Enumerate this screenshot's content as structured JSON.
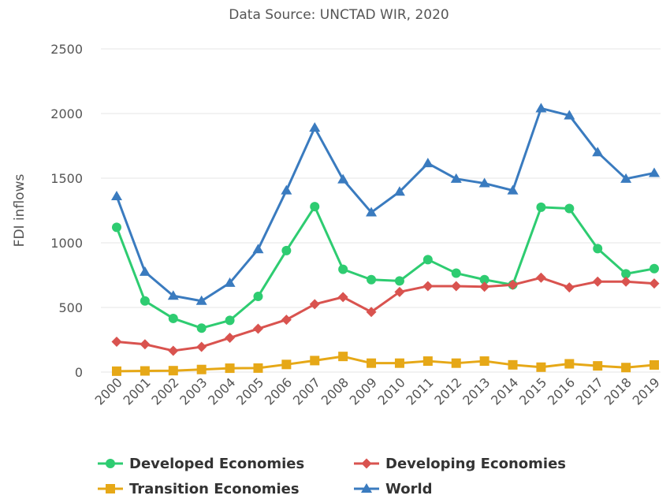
{
  "chart_data": {
    "type": "line",
    "subtitle": "Data Source: UNCTAD WIR, 2020",
    "ylabel": "FDI inflows",
    "xlabel": "",
    "ylim": [
      0,
      2500
    ],
    "yticks": [
      0,
      500,
      1000,
      1500,
      2000,
      2500
    ],
    "grid": "horizontal",
    "legend_position": "bottom",
    "x": [
      "2000",
      "2001",
      "2002",
      "2003",
      "2004",
      "2005",
      "2006",
      "2007",
      "2008",
      "2009",
      "2010",
      "2011",
      "2012",
      "2013",
      "2014",
      "2015",
      "2016",
      "2017",
      "2018",
      "2019"
    ],
    "series": [
      {
        "name": "Developed Economies",
        "color": "#2ecc71",
        "marker": "circle",
        "values": [
          1120,
          550,
          415,
          340,
          400,
          585,
          940,
          1280,
          795,
          715,
          705,
          870,
          765,
          715,
          675,
          1275,
          1265,
          955,
          760,
          800
        ]
      },
      {
        "name": "Developing Economies",
        "color": "#d9534f",
        "marker": "diamond",
        "values": [
          235,
          215,
          165,
          195,
          265,
          335,
          405,
          525,
          580,
          465,
          620,
          665,
          665,
          660,
          675,
          730,
          655,
          700,
          700,
          685
        ]
      },
      {
        "name": "Transition Economies",
        "color": "#e6a817",
        "marker": "square",
        "values": [
          7,
          9,
          11,
          20,
          30,
          31,
          59,
          89,
          121,
          69,
          69,
          85,
          69,
          85,
          56,
          38,
          64,
          48,
          35,
          55
        ]
      },
      {
        "name": "World",
        "color": "#3a7bbf",
        "marker": "triangle",
        "values": [
          1360,
          775,
          590,
          550,
          690,
          950,
          1405,
          1890,
          1490,
          1235,
          1395,
          1615,
          1495,
          1460,
          1405,
          2040,
          1985,
          1700,
          1495,
          1540
        ]
      }
    ]
  }
}
